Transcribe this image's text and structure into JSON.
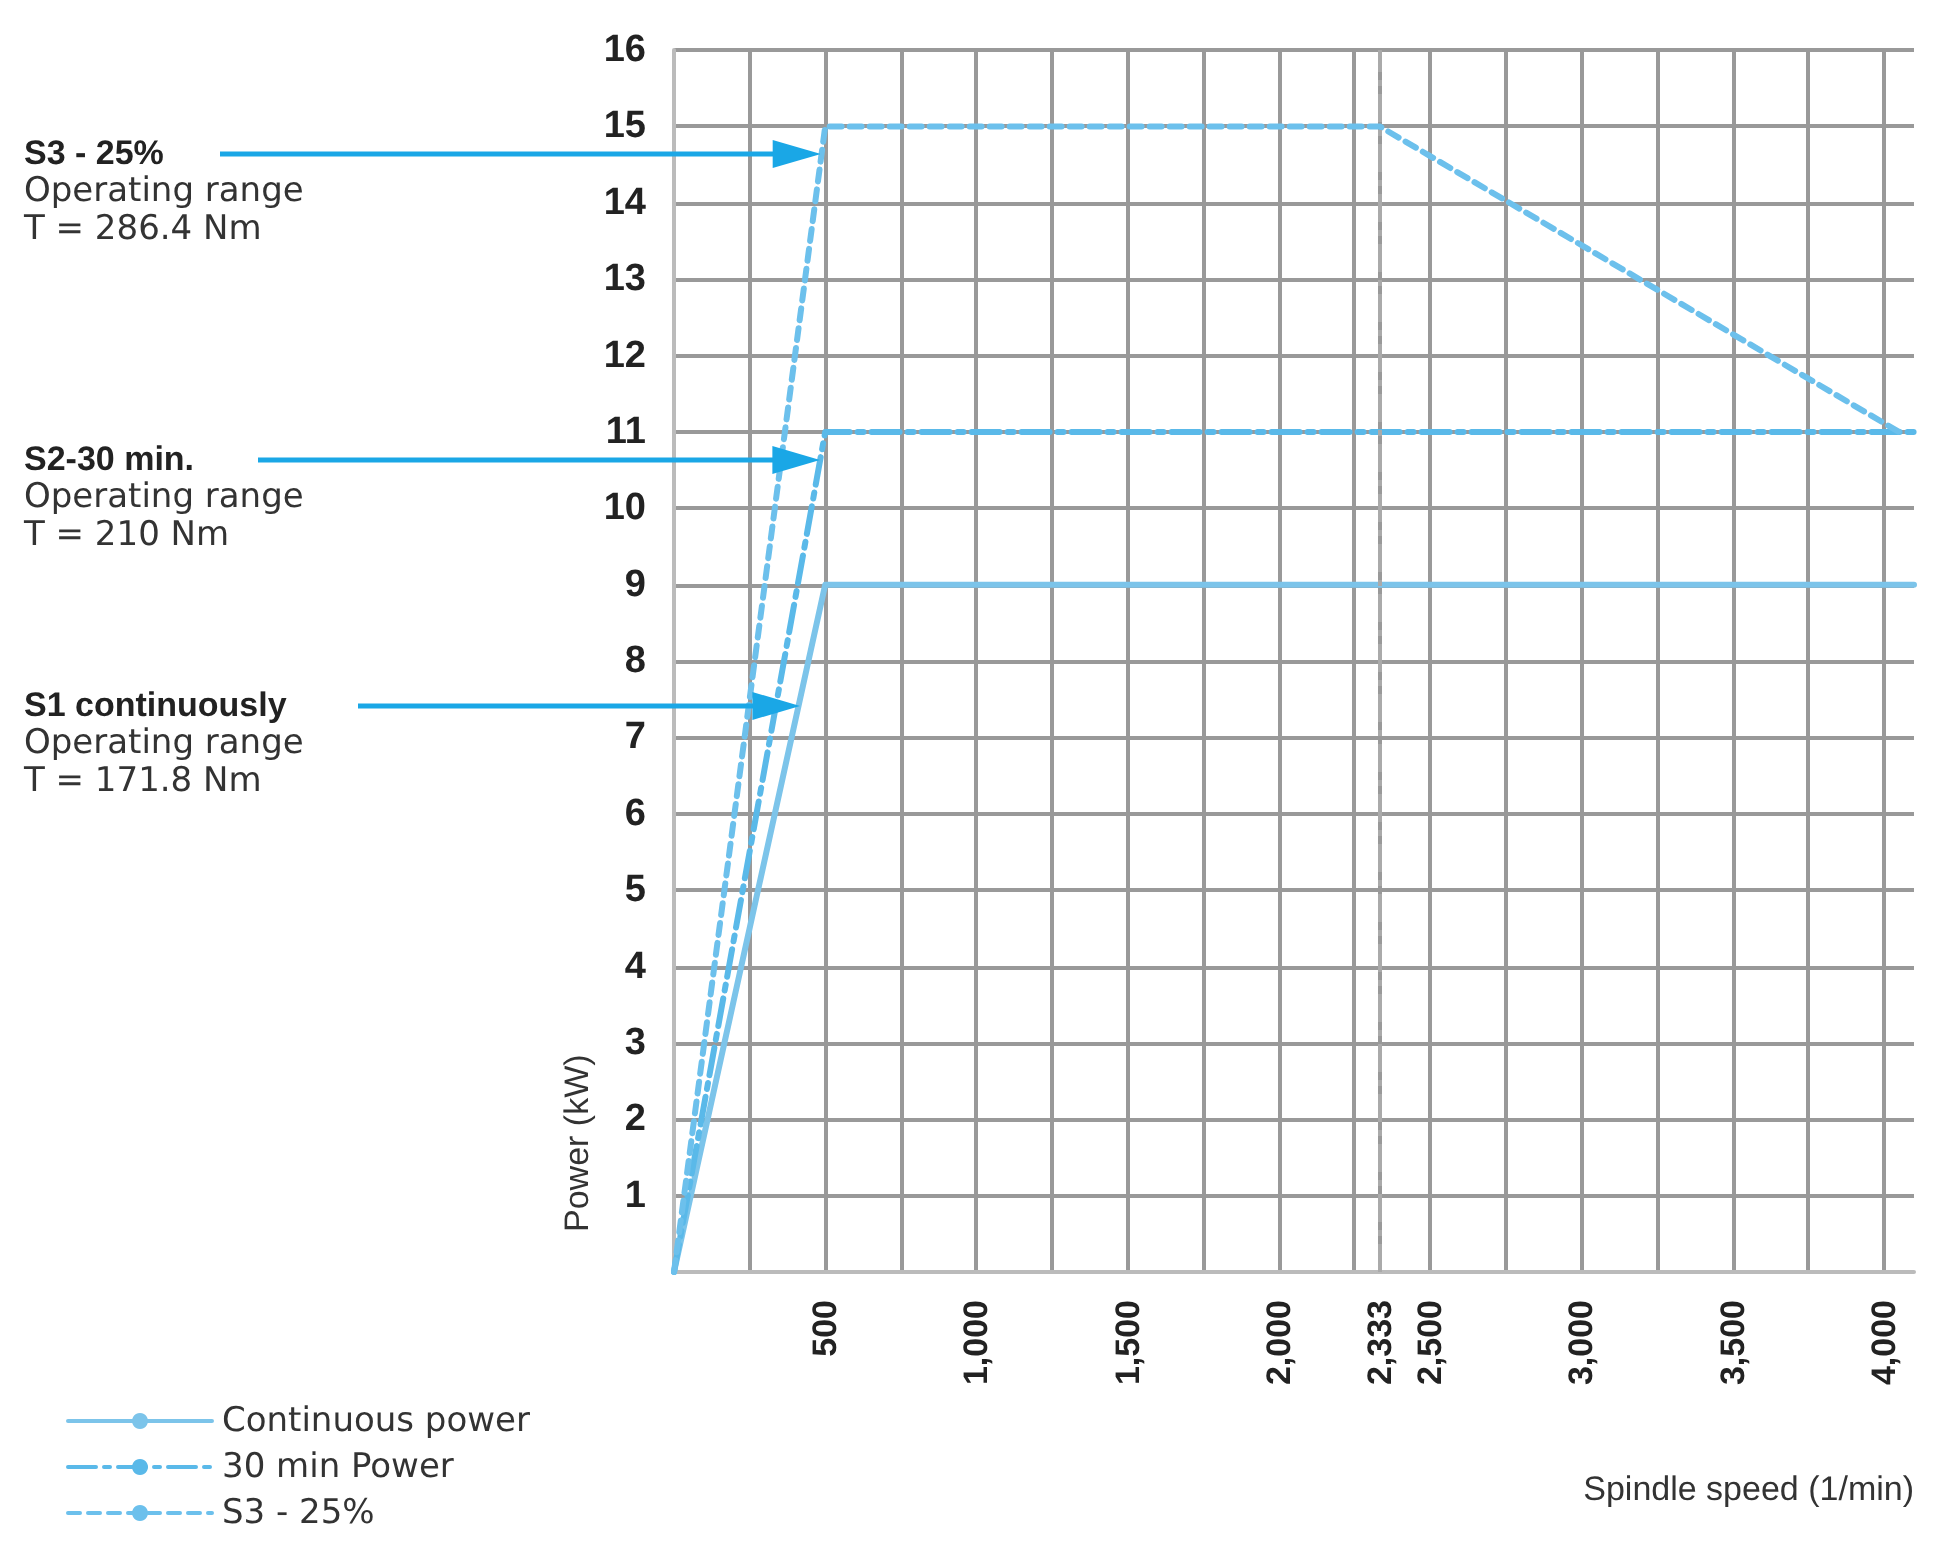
{
  "chart_data": {
    "type": "line",
    "xlabel": "Spindle speed (1/min)",
    "ylabel": "Power (kW)",
    "series": [
      {
        "name": "Continuous power",
        "color": "#7cc4ea",
        "line_style": "solid",
        "x": [
          0,
          500,
          4100
        ],
        "values": [
          0,
          9,
          9
        ]
      },
      {
        "name": "30 min Power",
        "color": "#5ab9e9",
        "line_style": "dashed",
        "x": [
          0,
          500,
          4100
        ],
        "values": [
          0,
          11,
          11
        ]
      },
      {
        "name": "S3 - 25%",
        "color": "#6cc0ec",
        "line_style": "dotted",
        "x": [
          0,
          500,
          2333,
          4050
        ],
        "values": [
          0,
          15,
          15,
          11
        ]
      }
    ],
    "xlim": [
      0,
      4100
    ],
    "ylim": [
      0,
      16
    ],
    "xticks": [
      {
        "value": 250,
        "label": null
      },
      {
        "value": 500,
        "label": "500"
      },
      {
        "value": 750,
        "label": null
      },
      {
        "value": 1000,
        "label": "1,000"
      },
      {
        "value": 1250,
        "label": null
      },
      {
        "value": 1500,
        "label": "1,500"
      },
      {
        "value": 1750,
        "label": null
      },
      {
        "value": 2000,
        "label": "2,000"
      },
      {
        "value": 2250,
        "label": null
      },
      {
        "value": 2333,
        "label": "2,333"
      },
      {
        "value": 2500,
        "label": "2,500"
      },
      {
        "value": 2750,
        "label": null
      },
      {
        "value": 3000,
        "label": "3,000"
      },
      {
        "value": 3250,
        "label": null
      },
      {
        "value": 3500,
        "label": "3,500"
      },
      {
        "value": 3750,
        "label": null
      },
      {
        "value": 4000,
        "label": "4,000"
      }
    ],
    "yticks": [
      {
        "value": 0,
        "label": null
      },
      1,
      2,
      3,
      4,
      5,
      6,
      7,
      8,
      9,
      10,
      11,
      12,
      13,
      14,
      15,
      16
    ],
    "ref_lines": [
      {
        "axis": "x",
        "value": 2333,
        "label": null,
        "color": "#aaaaaa",
        "line_style": "dashed"
      }
    ],
    "annotations": [
      "S3 - 25%\nOperating range\nT = 286.4 Nm",
      "S2-30 min.\nOperating range\nT = 210 Nm",
      "S1 continuously\nOperating range\nT = 171.8 Nm"
    ],
    "grid": true,
    "legend": "bottom left",
    "marker": "none"
  }
}
